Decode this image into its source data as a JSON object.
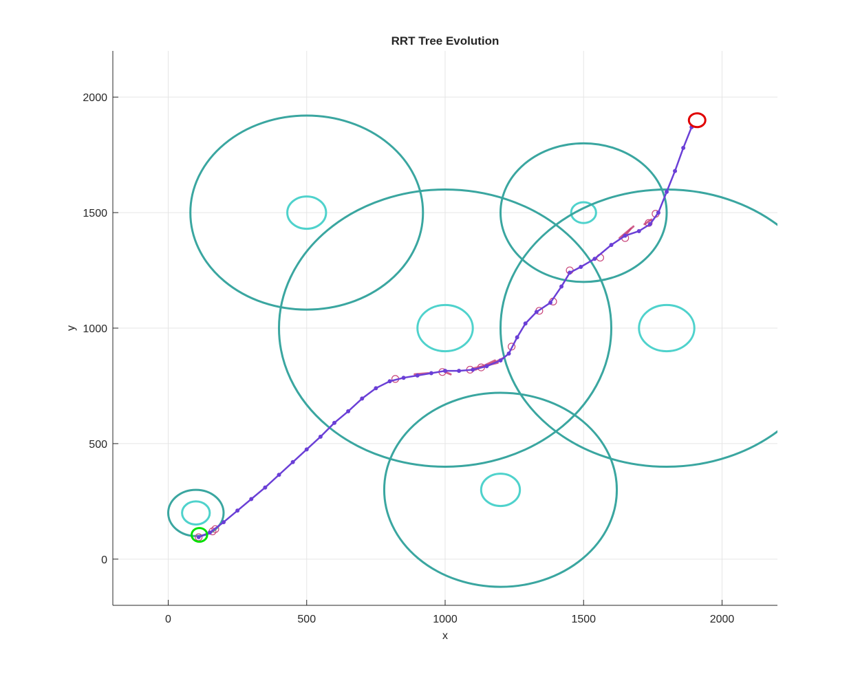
{
  "chart_data": {
    "type": "scatter",
    "title": "RRT Tree Evolution",
    "xlabel": "x",
    "ylabel": "y",
    "xlim": [
      -200,
      2200
    ],
    "ylim": [
      -200,
      2200
    ],
    "xticks": [
      "0",
      "500",
      "1000",
      "1500",
      "2000"
    ],
    "yticks": [
      "0",
      "500",
      "1000",
      "1500",
      "2000"
    ],
    "grid": true,
    "legend": "none",
    "colors": {
      "obstacle_outer": "#3aa6a0",
      "obstacle_inner": "#4fd2cc",
      "start": "#00e000",
      "goal": "#e00000",
      "path": "#6a3fd6",
      "tree": "#c8457a",
      "grid": "#e5e5e5",
      "axis": "#262626"
    },
    "start": {
      "x": 120,
      "y": 105,
      "r": 35
    },
    "goal": {
      "x": 1900,
      "y": 1900,
      "r": 35
    },
    "obstacles": [
      {
        "x": 100,
        "y": 200,
        "inner_r": 50,
        "outer_r": 100
      },
      {
        "x": 500,
        "y": 1500,
        "inner_r": 70,
        "outer_r": 420
      },
      {
        "x": 1000,
        "y": 1000,
        "inner_r": 100,
        "outer_r": 600
      },
      {
        "x": 1500,
        "y": 1500,
        "inner_r": 45,
        "outer_r": 300
      },
      {
        "x": 1800,
        "y": 1000,
        "inner_r": 100,
        "outer_r": 600
      },
      {
        "x": 1200,
        "y": 300,
        "inner_r": 70,
        "outer_r": 420
      }
    ],
    "path": [
      [
        110,
        95
      ],
      [
        150,
        115
      ],
      [
        200,
        160
      ],
      [
        250,
        210
      ],
      [
        300,
        260
      ],
      [
        350,
        310
      ],
      [
        400,
        365
      ],
      [
        450,
        420
      ],
      [
        500,
        475
      ],
      [
        550,
        530
      ],
      [
        600,
        590
      ],
      [
        650,
        640
      ],
      [
        700,
        695
      ],
      [
        750,
        740
      ],
      [
        800,
        770
      ],
      [
        850,
        785
      ],
      [
        900,
        795
      ],
      [
        950,
        805
      ],
      [
        1000,
        815
      ],
      [
        1050,
        815
      ],
      [
        1100,
        820
      ],
      [
        1150,
        835
      ],
      [
        1200,
        860
      ],
      [
        1230,
        890
      ],
      [
        1260,
        960
      ],
      [
        1290,
        1020
      ],
      [
        1330,
        1070
      ],
      [
        1380,
        1110
      ],
      [
        1420,
        1180
      ],
      [
        1450,
        1240
      ],
      [
        1490,
        1265
      ],
      [
        1540,
        1300
      ],
      [
        1600,
        1360
      ],
      [
        1650,
        1400
      ],
      [
        1700,
        1420
      ],
      [
        1740,
        1450
      ],
      [
        1770,
        1500
      ],
      [
        1800,
        1590
      ],
      [
        1830,
        1680
      ],
      [
        1860,
        1780
      ],
      [
        1890,
        1870
      ]
    ],
    "tree_nodes": [
      [
        110,
        95
      ],
      [
        160,
        120
      ],
      [
        170,
        130
      ],
      [
        820,
        780
      ],
      [
        990,
        810
      ],
      [
        1090,
        820
      ],
      [
        1130,
        830
      ],
      [
        1240,
        920
      ],
      [
        1340,
        1075
      ],
      [
        1390,
        1115
      ],
      [
        1450,
        1250
      ],
      [
        1560,
        1305
      ],
      [
        1650,
        1390
      ],
      [
        1735,
        1455
      ],
      [
        1760,
        1495
      ]
    ],
    "tree_branches": [
      [
        [
          940,
          805
        ],
        [
          890,
          800
        ]
      ],
      [
        [
          1000,
          810
        ],
        [
          1020,
          800
        ]
      ],
      [
        [
          1100,
          825
        ],
        [
          1190,
          850
        ]
      ],
      [
        [
          1110,
          820
        ],
        [
          1180,
          860
        ]
      ],
      [
        [
          1210,
          870
        ],
        [
          1150,
          835
        ]
      ],
      [
        [
          1630,
          1390
        ],
        [
          1680,
          1440
        ]
      ],
      [
        [
          1650,
          1400
        ],
        [
          1670,
          1430
        ]
      ],
      [
        [
          1720,
          1450
        ],
        [
          1745,
          1470
        ]
      ]
    ]
  }
}
